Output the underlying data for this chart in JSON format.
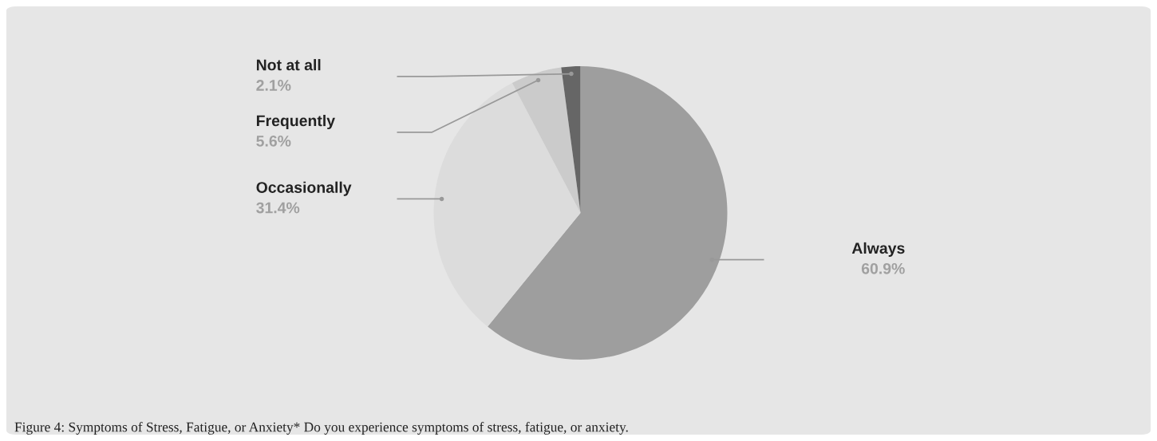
{
  "chart_data": {
    "type": "pie",
    "categories": [
      "Always",
      "Occasionally",
      "Frequently",
      "Not at all"
    ],
    "values": [
      60.9,
      31.4,
      5.6,
      2.1
    ],
    "value_labels": [
      "60.9%",
      "31.4%",
      "5.6%",
      "2.1%"
    ],
    "colors": [
      "#9e9e9e",
      "#dcdcdc",
      "#cbcbcb",
      "#666666"
    ],
    "annotations": [
      "Figure 4: Symptoms of Stress, Fatigue, or Anxiety* Do you experience symptoms of stress, fatigue, or anxiety."
    ]
  }
}
